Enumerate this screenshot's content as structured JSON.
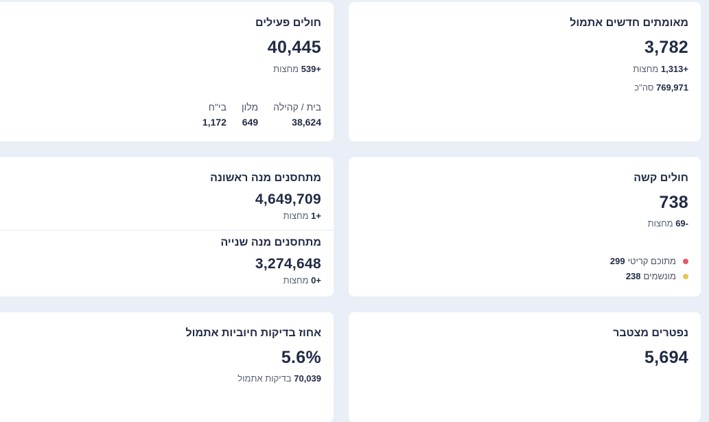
{
  "cards": {
    "new_confirmed": {
      "title": "מאומתים חדשים אתמול",
      "value": "3,782",
      "delta": "+1,313",
      "delta_unit": "מחצות",
      "total_value": "769,971",
      "total_label": "סה\"כ"
    },
    "active": {
      "title": "חולים פעילים",
      "value": "40,445",
      "delta": "+539",
      "delta_unit": "מחצות",
      "breakdown": [
        {
          "label": "בית / קהילה",
          "value": "38,624"
        },
        {
          "label": "מלון",
          "value": "649"
        },
        {
          "label": "בי\"ח",
          "value": "1,172"
        }
      ]
    },
    "severe": {
      "title": "חולים קשה",
      "value": "738",
      "delta": "-69",
      "delta_unit": "מחצות",
      "legend": [
        {
          "label": "מתוכם קריטי",
          "value": "299",
          "color": "#e5566c"
        },
        {
          "label": "מונשמים",
          "value": "238",
          "color": "#e5c45a"
        }
      ]
    },
    "vaccinated": {
      "first_title": "מתחסנים מנה ראשונה",
      "first_value": "4,649,709",
      "first_delta": "+1",
      "first_unit": "מחצות",
      "second_title": "מתחסנים מנה שנייה",
      "second_value": "3,274,648",
      "second_delta": "+0",
      "second_unit": "מחצות"
    },
    "deceased": {
      "title": "נפטרים מצטבר",
      "value": "5,694"
    },
    "positive_rate": {
      "title": "אחוז בדיקות חיוביות אתמול",
      "value": "5.6%",
      "tests_value": "70,039",
      "tests_label": "בדיקות אתמול"
    }
  }
}
